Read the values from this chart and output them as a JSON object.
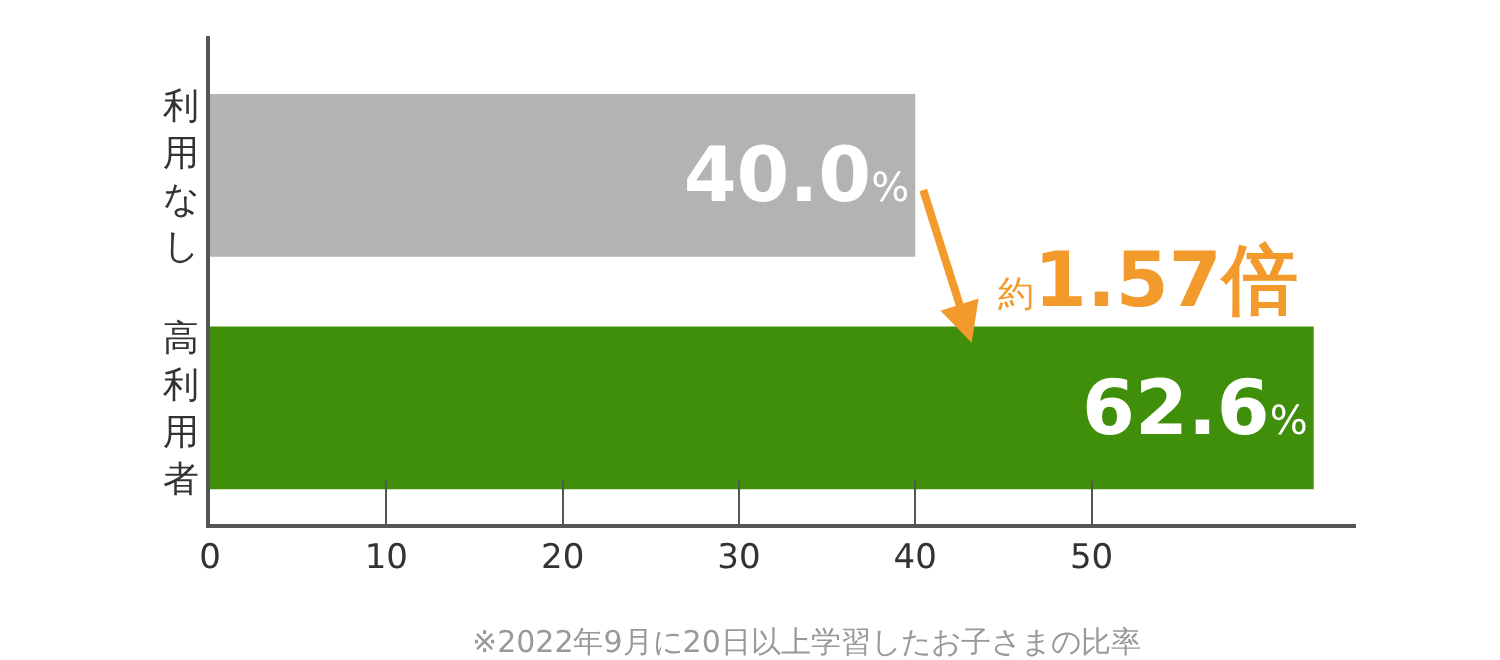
{
  "chart_data": {
    "type": "bar",
    "orientation": "horizontal",
    "categories": [
      "利用なし",
      "高利用者"
    ],
    "values": [
      40.0,
      62.6
    ],
    "colors": [
      "#b3b3b3",
      "#3f8f0a"
    ],
    "value_labels": [
      "40.0%",
      "62.6%"
    ],
    "xlim": [
      0,
      65
    ],
    "xticks": [
      0,
      10,
      20,
      30,
      40,
      50
    ],
    "annotations": [
      {
        "text": "約1.57倍",
        "x": 40.0,
        "y": "利用なし"
      },
      "※2022年9月に20日以上学習したお子さまの比率"
    ]
  }
}
